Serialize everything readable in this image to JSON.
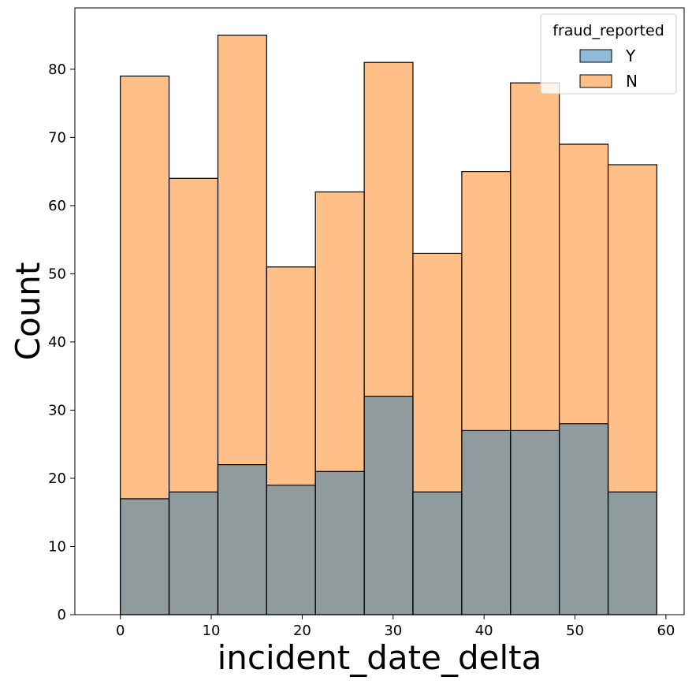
{
  "chart_data": {
    "type": "bar",
    "histogram": true,
    "stacked": false,
    "xlabel": "incident_date_delta",
    "ylabel": "Count",
    "xlim": [
      -5,
      62
    ],
    "ylim": [
      0,
      89
    ],
    "xticks": [
      0,
      10,
      20,
      30,
      40,
      50,
      60
    ],
    "yticks": [
      0,
      10,
      20,
      30,
      40,
      50,
      60,
      70,
      80
    ],
    "bin_edges": [
      0,
      5.36,
      10.73,
      16.09,
      21.45,
      26.82,
      32.18,
      37.55,
      42.91,
      48.27,
      53.64,
      59
    ],
    "grid": false,
    "legend": {
      "title": "fraud_reported",
      "placement": "top-right",
      "entries": [
        {
          "name": "Y",
          "color": "#1f77b4"
        },
        {
          "name": "N",
          "color": "#ff7f0e"
        }
      ]
    },
    "series": [
      {
        "name": "N",
        "color": "#ff7f0e",
        "values": [
          79,
          64,
          85,
          51,
          62,
          81,
          53,
          65,
          78,
          69,
          66
        ]
      },
      {
        "name": "Y",
        "color": "#1f77b4",
        "values": [
          17,
          18,
          22,
          19,
          21,
          32,
          18,
          27,
          27,
          28,
          18
        ]
      }
    ]
  }
}
